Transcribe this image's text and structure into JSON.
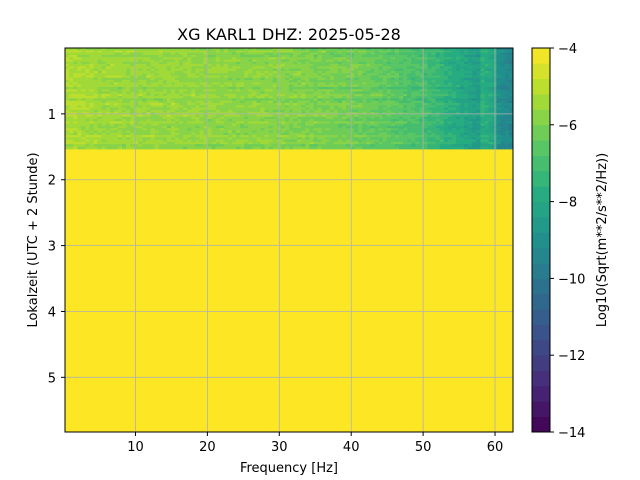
{
  "chart_data": {
    "type": "heatmap",
    "title": "XG KARL1  DHZ: 2025-05-28",
    "xlabel": "Frequency [Hz]",
    "ylabel": "Lokalzeit (UTC + 2 Stunde)",
    "colorbar_label": "Log10(Sqrt(m**2/s**2/Hz))",
    "xlim": [
      0.2,
      62.5
    ],
    "ylim": [
      5.83,
      0.0
    ],
    "x_ticks": [
      10,
      20,
      30,
      40,
      50,
      60
    ],
    "x_tick_labels": [
      "10",
      "20",
      "30",
      "40",
      "50",
      "60"
    ],
    "y_ticks": [
      1,
      2,
      3,
      4,
      5
    ],
    "y_tick_labels": [
      "1",
      "2",
      "3",
      "4",
      "5"
    ],
    "colorbar_range": [
      -14,
      -4
    ],
    "colorbar_ticks": [
      -14,
      -12,
      -10,
      -8,
      -6,
      -4
    ],
    "colorbar_tick_labels": [
      "−14",
      "−12",
      "−10",
      "−8",
      "−6",
      "−4"
    ],
    "colorbar_levels": 25,
    "grid": true,
    "data_hours": [
      0.0,
      1.53
    ],
    "fill_value": -4,
    "spectrum": {
      "freq": [
        0.2,
        5,
        10,
        15,
        20,
        25,
        30,
        35,
        40,
        45,
        50,
        55,
        60,
        62.5
      ],
      "log10_amplitude": [
        -5.2,
        -5.5,
        -5.6,
        -5.6,
        -5.7,
        -5.75,
        -5.85,
        -6.0,
        -6.2,
        -6.5,
        -7.0,
        -7.9,
        -9.0,
        -9.4
      ]
    },
    "colormap": "viridis"
  }
}
